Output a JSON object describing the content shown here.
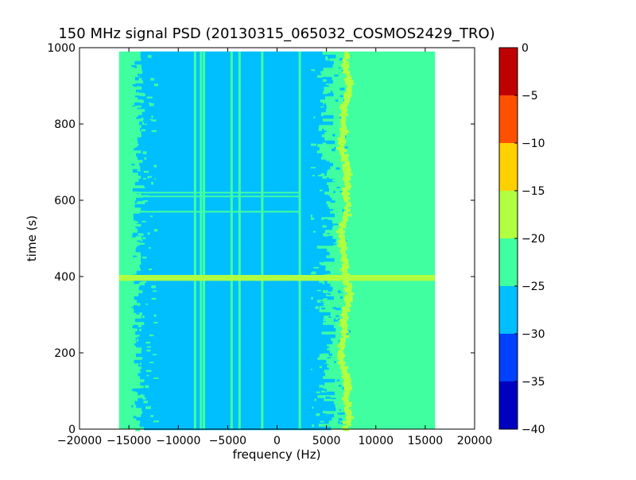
{
  "chart_data": {
    "type": "heatmap",
    "title": "150 MHz signal PSD (20130315_065032_COSMOS2429_TRO)",
    "xlabel": "frequency (Hz)",
    "ylabel": "time (s)",
    "xlim": [
      -20000,
      20000
    ],
    "ylim": [
      0,
      1000
    ],
    "x_ticks": [
      -20000,
      -15000,
      -10000,
      -5000,
      0,
      5000,
      10000,
      15000,
      20000
    ],
    "y_ticks": [
      0,
      200,
      400,
      600,
      800,
      1000
    ],
    "data_extent": {
      "x": [
        -16000,
        16000
      ],
      "y": [
        0,
        990
      ]
    },
    "grid": false,
    "colorbar": {
      "levels": [
        -40,
        -35,
        -30,
        -25,
        -20,
        -15,
        -10,
        -5,
        0
      ],
      "colors": [
        "#0000c0",
        "#0040ff",
        "#00bfff",
        "#40ffa0",
        "#b0ff40",
        "#ffd000",
        "#ff5000",
        "#c00000"
      ],
      "tick_labels": [
        "-40",
        "-35",
        "-30",
        "-25",
        "-20",
        "-15",
        "-10",
        "-5",
        "0"
      ],
      "tick_values": [
        -40,
        -35,
        -30,
        -25,
        -20,
        -15,
        -10,
        -5,
        0
      ]
    },
    "features": {
      "noise_floor_band_hz": [
        -16000,
        16000
      ],
      "noise_floor_level_db": -22,
      "passband_hz": [
        -14000,
        5000
      ],
      "passband_level_db": -27,
      "constant_lines_hz": [
        -8300,
        -7700,
        -7400,
        -4600,
        -3800,
        -1500,
        2300
      ],
      "signal_trace_hz": [
        6500,
        7300
      ],
      "signal_trace_level_db": -17,
      "interference_bursts_s": [
        393,
        400,
        570,
        610,
        620
      ]
    }
  }
}
